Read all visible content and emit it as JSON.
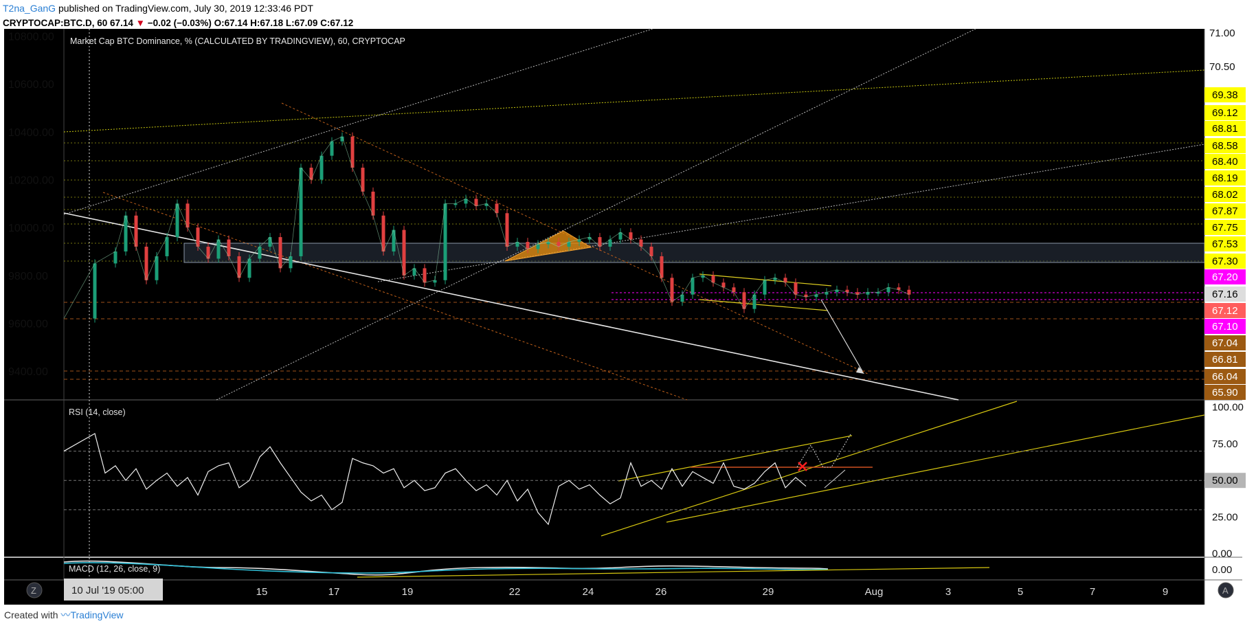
{
  "header": {
    "author": "T2na_GanG",
    "published": " published on TradingView.com, July 30, 2019 12:33:46 PDT",
    "symbol": "CRYPTOCAP:BTC.D, 60",
    "last": "67.14",
    "change": "−0.02 (−0.03%)",
    "ohlc": "O:67.14 H:67.18 L:67.09 C:67.12"
  },
  "footer": {
    "created_with": "Created with",
    "brand": "TradingView"
  },
  "chart_data": [
    {
      "type": "candlestick",
      "title": "Market Cap BTC Dominance, % (CALCULATED BY TRADINGVIEW), 60, CRYPTOCAP",
      "left_axis_ticks": [
        "10800.00",
        "10600.00",
        "10400.00",
        "10200.00",
        "10000.00",
        "9800.00",
        "9600.00",
        "9400.00"
      ],
      "right_axis_ticks": [
        "71.00",
        "70.50"
      ],
      "right_axis_labels": [
        {
          "value": "69.38",
          "color": "#ffff00"
        },
        {
          "value": "69.12",
          "color": "#ffff00"
        },
        {
          "value": "68.81",
          "color": "#ffff00"
        },
        {
          "value": "68.58",
          "color": "#ffff00"
        },
        {
          "value": "68.40",
          "color": "#ffff00"
        },
        {
          "value": "68.19",
          "color": "#ffff00"
        },
        {
          "value": "68.02",
          "color": "#ffff00"
        },
        {
          "value": "67.87",
          "color": "#ffff00"
        },
        {
          "value": "67.75",
          "color": "#ffff00"
        },
        {
          "value": "67.53",
          "color": "#ffff00"
        },
        {
          "value": "67.30",
          "color": "#ffff00"
        },
        {
          "value": "67.20",
          "color": "#ff00ff"
        },
        {
          "value": "67.16",
          "color": "#dddddd"
        },
        {
          "value": "67.12",
          "color": "#ff5d5d"
        },
        {
          "value": "67.10",
          "color": "#ff00ff"
        },
        {
          "value": "67.04",
          "color": "#9c5a12"
        },
        {
          "value": "66.81",
          "color": "#9c5a12"
        },
        {
          "value": "66.04",
          "color": "#9c5a12"
        },
        {
          "value": "65.90",
          "color": "#9c5a12"
        }
      ],
      "x_tick_labels": [
        "15",
        "17",
        "19",
        "22",
        "24",
        "26",
        "29",
        "Aug",
        "3",
        "5",
        "7",
        "9"
      ],
      "cursor_date": "10 Jul '19  05:00",
      "y_range": [
        9280,
        10830
      ],
      "series_path": [
        [
          0,
          9620
        ],
        [
          3,
          9850
        ],
        [
          5,
          9900
        ],
        [
          6,
          10050
        ],
        [
          7,
          9920
        ],
        [
          8,
          9780
        ],
        [
          9,
          9880
        ],
        [
          10,
          9960
        ],
        [
          11,
          10100
        ],
        [
          12,
          10000
        ],
        [
          13,
          9920
        ],
        [
          14,
          9870
        ],
        [
          15,
          9950
        ],
        [
          16,
          9880
        ],
        [
          17,
          9790
        ],
        [
          18,
          9870
        ],
        [
          19,
          9920
        ],
        [
          20,
          9960
        ],
        [
          21,
          9830
        ],
        [
          22,
          9880
        ],
        [
          23,
          10250
        ],
        [
          24,
          10200
        ],
        [
          25,
          10300
        ],
        [
          26,
          10360
        ],
        [
          27,
          10380
        ],
        [
          28,
          10250
        ],
        [
          29,
          10150
        ],
        [
          30,
          10050
        ],
        [
          31,
          9900
        ],
        [
          32,
          9990
        ],
        [
          33,
          9800
        ],
        [
          34,
          9830
        ],
        [
          35,
          9770
        ],
        [
          36,
          9780
        ],
        [
          37,
          10100
        ],
        [
          38,
          10100
        ],
        [
          39,
          10120
        ],
        [
          40,
          10090
        ],
        [
          41,
          10100
        ],
        [
          42,
          10060
        ],
        [
          43,
          9920
        ],
        [
          44,
          9940
        ],
        [
          45,
          9910
        ],
        [
          46,
          9930
        ],
        [
          47,
          9940
        ],
        [
          48,
          9920
        ],
        [
          49,
          9940
        ],
        [
          50,
          9950
        ],
        [
          51,
          9960
        ],
        [
          52,
          9920
        ],
        [
          53,
          9950
        ],
        [
          54,
          9980
        ],
        [
          55,
          9950
        ],
        [
          56,
          9920
        ],
        [
          57,
          9880
        ],
        [
          58,
          9790
        ],
        [
          59,
          9690
        ],
        [
          60,
          9720
        ],
        [
          61,
          9790
        ],
        [
          62,
          9800
        ],
        [
          63,
          9770
        ],
        [
          64,
          9750
        ],
        [
          65,
          9730
        ],
        [
          66,
          9660
        ],
        [
          67,
          9720
        ],
        [
          68,
          9780
        ],
        [
          69,
          9790
        ],
        [
          70,
          9770
        ],
        [
          71,
          9720
        ],
        [
          72,
          9710
        ],
        [
          73,
          9720
        ],
        [
          74,
          9730
        ],
        [
          75,
          9740
        ],
        [
          76,
          9730
        ],
        [
          77,
          9720
        ],
        [
          78,
          9730
        ],
        [
          79,
          9730
        ],
        [
          80,
          9750
        ],
        [
          81,
          9740
        ],
        [
          82,
          9720
        ]
      ]
    },
    {
      "type": "line",
      "title": "RSI (14, close)",
      "axis_ticks": [
        "100.00",
        "75.00",
        "50.00",
        "25.00",
        "0.00"
      ],
      "current_label": "50.00",
      "y_range": [
        -2,
        105
      ],
      "series": [
        [
          0,
          70
        ],
        [
          2,
          78
        ],
        [
          3,
          82
        ],
        [
          4,
          55
        ],
        [
          5,
          60
        ],
        [
          6,
          50
        ],
        [
          7,
          58
        ],
        [
          8,
          44
        ],
        [
          9,
          50
        ],
        [
          10,
          55
        ],
        [
          11,
          46
        ],
        [
          12,
          52
        ],
        [
          13,
          40
        ],
        [
          14,
          56
        ],
        [
          15,
          60
        ],
        [
          16,
          62
        ],
        [
          17,
          45
        ],
        [
          18,
          50
        ],
        [
          19,
          66
        ],
        [
          20,
          73
        ],
        [
          21,
          62
        ],
        [
          22,
          52
        ],
        [
          23,
          42
        ],
        [
          24,
          36
        ],
        [
          25,
          40
        ],
        [
          26,
          30
        ],
        [
          27,
          35
        ],
        [
          28,
          65
        ],
        [
          29,
          62
        ],
        [
          30,
          60
        ],
        [
          31,
          55
        ],
        [
          32,
          58
        ],
        [
          33,
          45
        ],
        [
          34,
          50
        ],
        [
          35,
          43
        ],
        [
          36,
          45
        ],
        [
          37,
          55
        ],
        [
          38,
          58
        ],
        [
          39,
          50
        ],
        [
          40,
          43
        ],
        [
          41,
          47
        ],
        [
          42,
          40
        ],
        [
          43,
          50
        ],
        [
          44,
          36
        ],
        [
          45,
          44
        ],
        [
          46,
          28
        ],
        [
          47,
          20
        ],
        [
          48,
          46
        ],
        [
          49,
          50
        ],
        [
          50,
          44
        ],
        [
          51,
          47
        ],
        [
          52,
          40
        ],
        [
          53,
          34
        ],
        [
          54,
          38
        ],
        [
          55,
          62
        ],
        [
          56,
          46
        ],
        [
          57,
          50
        ],
        [
          58,
          44
        ],
        [
          59,
          58
        ],
        [
          60,
          46
        ],
        [
          61,
          56
        ],
        [
          62,
          52
        ],
        [
          63,
          48
        ],
        [
          64,
          62
        ],
        [
          65,
          46
        ],
        [
          66,
          44
        ],
        [
          67,
          48
        ],
        [
          68,
          56
        ],
        [
          69,
          62
        ],
        [
          70,
          45
        ],
        [
          71,
          52
        ],
        [
          72,
          46
        ]
      ]
    },
    {
      "type": "line",
      "title": "MACD (12, 26, close, 9)",
      "axis_ticks": [
        "0.00"
      ],
      "current_label": "0.00"
    }
  ]
}
